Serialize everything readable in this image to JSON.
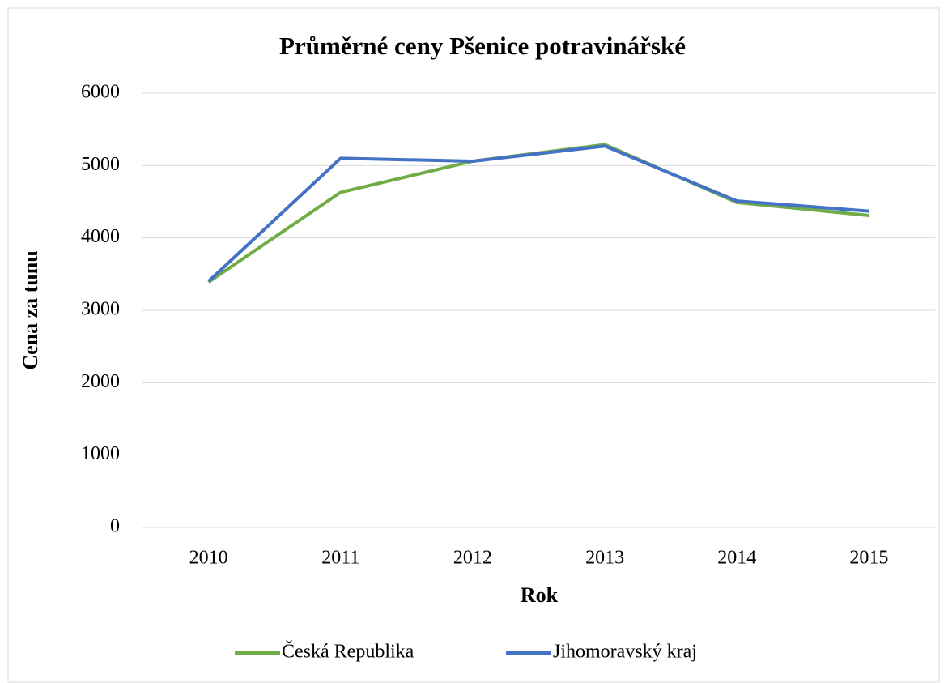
{
  "chart_data": {
    "type": "line",
    "title": "Průměrné ceny Pšenice potravinářské",
    "x_label": "Rok",
    "y_label": "Cena za tunu",
    "categories": [
      "2010",
      "2011",
      "2012",
      "2013",
      "2014",
      "2015"
    ],
    "series": [
      {
        "name": "Česká Republika",
        "color": "#70ad47",
        "values": [
          3390,
          4630,
          5060,
          5290,
          4490,
          4310
        ]
      },
      {
        "name": "Jihomoravský kraj",
        "color": "#4472c4",
        "values": [
          3400,
          5100,
          5060,
          5270,
          4510,
          4370
        ]
      }
    ],
    "ylim": [
      0,
      6000
    ],
    "yticks": [
      0,
      1000,
      2000,
      3000,
      4000,
      5000,
      6000
    ],
    "grid": true,
    "legend": "bottom"
  }
}
